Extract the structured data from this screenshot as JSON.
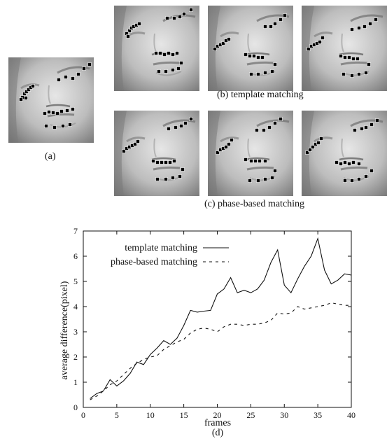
{
  "figure": {
    "label_a": "(a)",
    "label_b": "(b) template matching",
    "label_c": "(c) phase-based matching",
    "label_d": "(d)"
  },
  "chart_data": {
    "type": "line",
    "xlabel": "frames",
    "ylabel": "average difference(pixel)",
    "xlim": [
      0,
      40
    ],
    "ylim": [
      0,
      7
    ],
    "xticks": [
      0,
      5,
      10,
      15,
      20,
      25,
      30,
      35,
      40
    ],
    "yticks": [
      0,
      1,
      2,
      3,
      4,
      5,
      6,
      7
    ],
    "grid": false,
    "legend_position": "top-right",
    "series": [
      {
        "name": "template matching",
        "style": "solid",
        "color": "#111111",
        "x": [
          1,
          2,
          3,
          4,
          5,
          6,
          7,
          8,
          9,
          10,
          11,
          12,
          13,
          14,
          15,
          16,
          17,
          18,
          19,
          20,
          21,
          22,
          23,
          24,
          25,
          26,
          27,
          28,
          29,
          30,
          31,
          32,
          33,
          34,
          35,
          36,
          37,
          38,
          39,
          40
        ],
        "y": [
          0.35,
          0.55,
          0.65,
          1.1,
          0.85,
          1.05,
          1.35,
          1.8,
          1.7,
          2.1,
          2.35,
          2.65,
          2.5,
          2.75,
          3.25,
          3.85,
          3.78,
          3.82,
          3.85,
          4.5,
          4.7,
          5.15,
          4.55,
          4.65,
          4.55,
          4.7,
          5.05,
          5.75,
          6.25,
          4.85,
          4.55,
          5.1,
          5.6,
          6.0,
          6.7,
          5.45,
          4.9,
          5.05,
          5.3,
          5.25
        ]
      },
      {
        "name": "phase-based matching",
        "style": "dashed",
        "color": "#111111",
        "x": [
          1,
          2,
          3,
          4,
          5,
          6,
          7,
          8,
          9,
          10,
          11,
          12,
          13,
          14,
          15,
          16,
          17,
          18,
          19,
          20,
          21,
          22,
          23,
          24,
          25,
          26,
          27,
          28,
          29,
          30,
          31,
          32,
          33,
          34,
          35,
          36,
          37,
          38,
          39,
          40
        ],
        "y": [
          0.3,
          0.45,
          0.65,
          0.9,
          1.05,
          1.3,
          1.55,
          1.75,
          1.9,
          2.0,
          2.05,
          2.3,
          2.45,
          2.6,
          2.7,
          2.95,
          3.1,
          3.15,
          3.1,
          3.0,
          3.2,
          3.3,
          3.3,
          3.25,
          3.3,
          3.3,
          3.35,
          3.45,
          3.75,
          3.7,
          3.75,
          4.0,
          3.9,
          3.95,
          4.0,
          4.05,
          4.15,
          4.1,
          4.05,
          4.05
        ]
      }
    ]
  }
}
